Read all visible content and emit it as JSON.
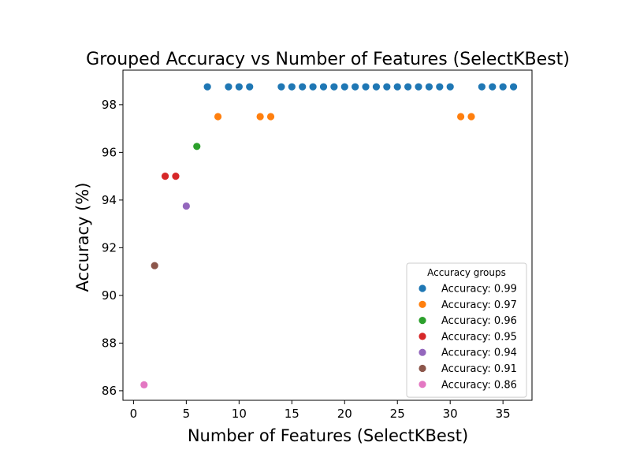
{
  "chart_data": {
    "type": "scatter",
    "title": "Grouped Accuracy vs Number of Features (SelectKBest)",
    "xlabel": "Number of Features (SelectKBest)",
    "ylabel": "Accuracy (%)",
    "xlim": [
      -1,
      37.75
    ],
    "ylim": [
      85.6,
      99.45
    ],
    "xticks": [
      0,
      5,
      10,
      15,
      20,
      25,
      30,
      35
    ],
    "yticks": [
      86,
      88,
      90,
      92,
      94,
      96,
      98
    ],
    "grid": false,
    "legend": {
      "title": "Accuracy groups",
      "position": "lower-right"
    },
    "series": [
      {
        "name": "Accuracy: 0.99",
        "color": "#1f77b4",
        "x": [
          7,
          9,
          10,
          11,
          14,
          15,
          16,
          17,
          18,
          19,
          20,
          21,
          22,
          23,
          24,
          25,
          26,
          27,
          28,
          29,
          30,
          33,
          34,
          35,
          36
        ],
        "y": [
          98.75,
          98.75,
          98.75,
          98.75,
          98.75,
          98.75,
          98.75,
          98.75,
          98.75,
          98.75,
          98.75,
          98.75,
          98.75,
          98.75,
          98.75,
          98.75,
          98.75,
          98.75,
          98.75,
          98.75,
          98.75,
          98.75,
          98.75,
          98.75,
          98.75
        ]
      },
      {
        "name": "Accuracy: 0.97",
        "color": "#ff7f0e",
        "x": [
          8,
          12,
          13,
          31,
          32
        ],
        "y": [
          97.5,
          97.5,
          97.5,
          97.5,
          97.5
        ]
      },
      {
        "name": "Accuracy: 0.96",
        "color": "#2ca02c",
        "x": [
          6
        ],
        "y": [
          96.25
        ]
      },
      {
        "name": "Accuracy: 0.95",
        "color": "#d62728",
        "x": [
          3,
          4
        ],
        "y": [
          95.0,
          95.0
        ]
      },
      {
        "name": "Accuracy: 0.94",
        "color": "#9467bd",
        "x": [
          5
        ],
        "y": [
          93.75
        ]
      },
      {
        "name": "Accuracy: 0.91",
        "color": "#8c564b",
        "x": [
          2
        ],
        "y": [
          91.25
        ]
      },
      {
        "name": "Accuracy: 0.86",
        "color": "#e377c2",
        "x": [
          1
        ],
        "y": [
          86.25
        ]
      }
    ]
  }
}
